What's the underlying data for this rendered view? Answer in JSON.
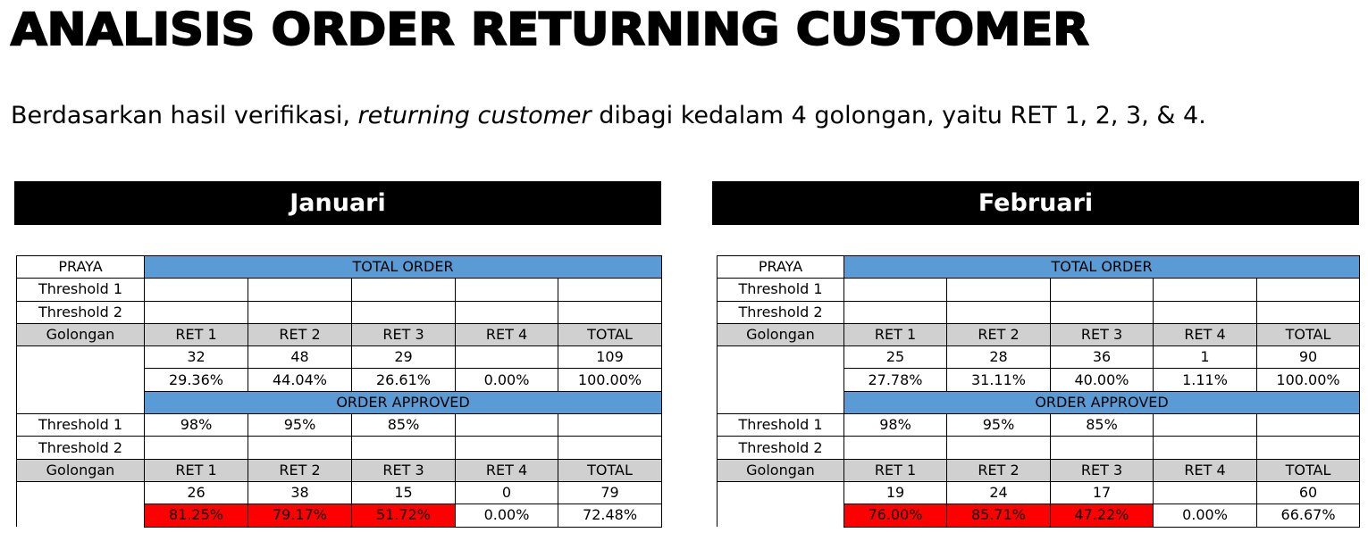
{
  "title": "ANALISIS ORDER RETURNING CUSTOMER",
  "intro": {
    "before": "Berdasarkan hasil verifikasi, ",
    "emphasis": "returning customer",
    "after": " dibagi kedalam 4 golongan, yaitu RET 1, 2, 3, & 4."
  },
  "labels": {
    "area": "PRAYA",
    "total_order": "TOTAL ORDER",
    "order_approved": "ORDER APPROVED",
    "threshold_1": "Threshold 1",
    "threshold_2": "Threshold 2",
    "golongan": "Golongan",
    "columns": [
      "RET 1",
      "RET 2",
      "RET 3",
      "RET 4",
      "TOTAL"
    ]
  },
  "highlight_color": "#ff0000",
  "header_color": "#5b9bd5",
  "months": [
    {
      "name": "Januari",
      "total_order": {
        "threshold_1": [
          "",
          "",
          "",
          "",
          ""
        ],
        "threshold_2": [
          "",
          "",
          "",
          "",
          ""
        ],
        "counts": [
          "32",
          "48",
          "29",
          "",
          "109"
        ],
        "percents": [
          "29.36%",
          "44.04%",
          "26.61%",
          "0.00%",
          "100.00%"
        ]
      },
      "order_approved": {
        "threshold_1": [
          "98%",
          "95%",
          "85%",
          "",
          ""
        ],
        "threshold_2": [
          "",
          "",
          "",
          "",
          ""
        ],
        "counts": [
          "26",
          "38",
          "15",
          "0",
          "79"
        ],
        "percents": [
          "81.25%",
          "79.17%",
          "51.72%",
          "0.00%",
          "72.48%"
        ]
      }
    },
    {
      "name": "Februari",
      "total_order": {
        "threshold_1": [
          "",
          "",
          "",
          "",
          ""
        ],
        "threshold_2": [
          "",
          "",
          "",
          "",
          ""
        ],
        "counts": [
          "25",
          "28",
          "36",
          "1",
          "90"
        ],
        "percents": [
          "27.78%",
          "31.11%",
          "40.00%",
          "1.11%",
          "100.00%"
        ]
      },
      "order_approved": {
        "threshold_1": [
          "98%",
          "95%",
          "85%",
          "",
          ""
        ],
        "threshold_2": [
          "",
          "",
          "",
          "",
          ""
        ],
        "counts": [
          "19",
          "24",
          "17",
          "",
          "60"
        ],
        "percents": [
          "76.00%",
          "85.71%",
          "47.22%",
          "0.00%",
          "66.67%"
        ]
      }
    }
  ]
}
